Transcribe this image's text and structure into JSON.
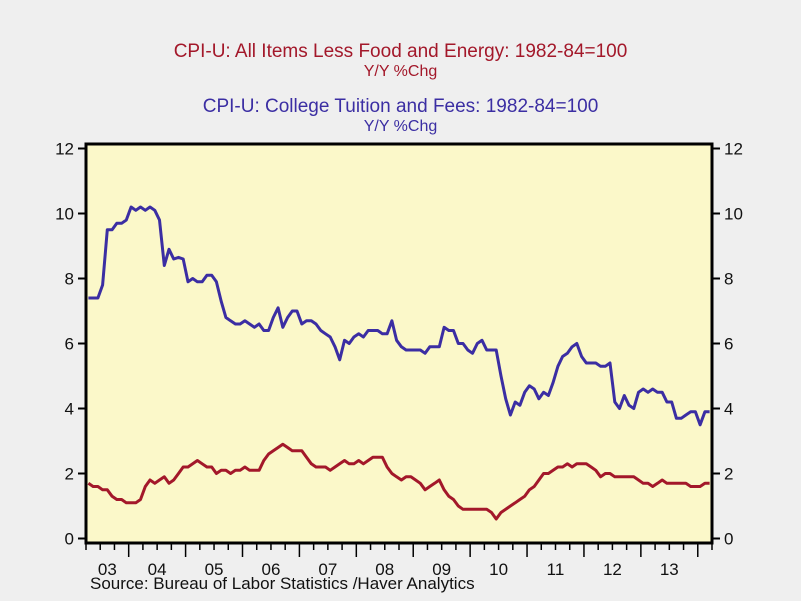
{
  "chart_data": {
    "type": "line",
    "titles": [
      {
        "title": "CPI-U: All Items Less Food and Energy: 1982-84=100",
        "subtitle": "Y/Y %Chg",
        "color": "#a3182a"
      },
      {
        "title": "CPI-U: College Tuition and Fees: 1982-84=100",
        "subtitle": "Y/Y %Chg",
        "color": "#3b2ea3"
      }
    ],
    "source": "Source:  Bureau of Labor Statistics /Haver Analytics",
    "xlabel": "",
    "ylabel": "",
    "x_start": "2003-04",
    "x_frequency": "monthly",
    "x_range": [
      2003.25,
      2014.25
    ],
    "x_tick_labels": [
      "03",
      "04",
      "05",
      "06",
      "07",
      "08",
      "09",
      "10",
      "11",
      "12",
      "13"
    ],
    "ylim": [
      0,
      12
    ],
    "y_ticks": [
      0,
      2,
      4,
      6,
      8,
      10,
      12
    ],
    "y_axes": "left and right (identical)",
    "grid": false,
    "legend": "titles at top-center",
    "plot_background": "#fbf8c9",
    "series": [
      {
        "name": "CPI-U: All Items Less Food and Energy Y/Y %Chg",
        "color": "#a3182a",
        "values": [
          1.7,
          1.6,
          1.6,
          1.5,
          1.5,
          1.3,
          1.2,
          1.2,
          1.1,
          1.1,
          1.1,
          1.2,
          1.6,
          1.8,
          1.7,
          1.8,
          1.9,
          1.7,
          1.8,
          2.0,
          2.2,
          2.2,
          2.3,
          2.4,
          2.3,
          2.2,
          2.2,
          2.0,
          2.1,
          2.1,
          2.0,
          2.1,
          2.1,
          2.2,
          2.1,
          2.1,
          2.1,
          2.4,
          2.6,
          2.7,
          2.8,
          2.9,
          2.8,
          2.7,
          2.7,
          2.7,
          2.5,
          2.3,
          2.2,
          2.2,
          2.2,
          2.1,
          2.2,
          2.3,
          2.4,
          2.3,
          2.3,
          2.4,
          2.3,
          2.4,
          2.5,
          2.5,
          2.5,
          2.2,
          2.0,
          1.9,
          1.8,
          1.9,
          1.9,
          1.8,
          1.7,
          1.5,
          1.6,
          1.7,
          1.8,
          1.5,
          1.3,
          1.2,
          1.0,
          0.9,
          0.9,
          0.9,
          0.9,
          0.9,
          0.9,
          0.8,
          0.6,
          0.8,
          0.9,
          1.0,
          1.1,
          1.2,
          1.3,
          1.5,
          1.6,
          1.8,
          2.0,
          2.0,
          2.1,
          2.2,
          2.2,
          2.3,
          2.2,
          2.3,
          2.3,
          2.3,
          2.2,
          2.1,
          1.9,
          2.0,
          2.0,
          1.9,
          1.9,
          1.9,
          1.9,
          1.9,
          1.8,
          1.7,
          1.7,
          1.6,
          1.7,
          1.8,
          1.7,
          1.7,
          1.7,
          1.7,
          1.7,
          1.6,
          1.6,
          1.6,
          1.7,
          1.7
        ]
      },
      {
        "name": "CPI-U: College Tuition and Fees Y/Y %Chg",
        "color": "#3b2ea3",
        "values": [
          7.4,
          7.4,
          7.4,
          7.8,
          9.5,
          9.5,
          9.7,
          9.7,
          9.8,
          10.2,
          10.1,
          10.2,
          10.1,
          10.2,
          10.1,
          9.8,
          8.4,
          8.9,
          8.6,
          8.65,
          8.6,
          7.9,
          8.0,
          7.9,
          7.9,
          8.1,
          8.1,
          7.9,
          7.3,
          6.8,
          6.7,
          6.6,
          6.6,
          6.7,
          6.6,
          6.5,
          6.6,
          6.4,
          6.4,
          6.8,
          7.1,
          6.5,
          6.8,
          7.0,
          7.0,
          6.6,
          6.7,
          6.7,
          6.6,
          6.4,
          6.3,
          6.2,
          5.9,
          5.5,
          6.1,
          6.0,
          6.2,
          6.3,
          6.2,
          6.4,
          6.4,
          6.4,
          6.3,
          6.3,
          6.7,
          6.1,
          5.9,
          5.8,
          5.8,
          5.8,
          5.8,
          5.7,
          5.9,
          5.9,
          5.9,
          6.5,
          6.4,
          6.4,
          6.0,
          6.0,
          5.8,
          5.7,
          6.0,
          6.1,
          5.8,
          5.8,
          5.8,
          5.0,
          4.3,
          3.8,
          4.2,
          4.1,
          4.5,
          4.7,
          4.6,
          4.3,
          4.5,
          4.4,
          4.8,
          5.3,
          5.6,
          5.7,
          5.9,
          6.0,
          5.6,
          5.4,
          5.4,
          5.4,
          5.3,
          5.3,
          5.4,
          4.2,
          4.0,
          4.4,
          4.1,
          4.0,
          4.5,
          4.6,
          4.5,
          4.6,
          4.5,
          4.5,
          4.2,
          4.2,
          3.7,
          3.7,
          3.8,
          3.9,
          3.9,
          3.5,
          3.9,
          3.9
        ]
      }
    ]
  }
}
